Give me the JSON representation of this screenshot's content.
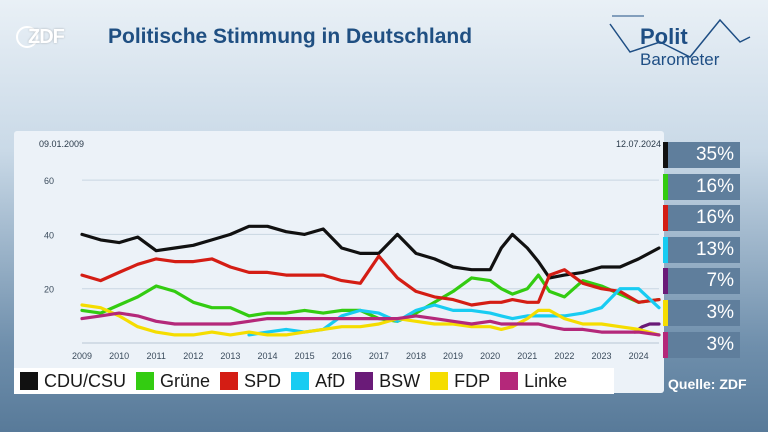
{
  "header": {
    "title": "Politische Stimmung in Deutschland",
    "zdf_logo_text": "ZDF",
    "politbarometer_line1": "Polit",
    "politbarometer_line2": "Barometer"
  },
  "source": "Quelle: ZDF",
  "colors": {
    "CDU/CSU": "#111111",
    "Grüne": "#33cc11",
    "SPD": "#d41d14",
    "AfD": "#18ccf2",
    "BSW": "#6a1b78",
    "FDP": "#f5dd00",
    "Linke": "#b4287a"
  },
  "current_results": [
    {
      "party": "CDU/CSU",
      "value": "35%"
    },
    {
      "party": "Grüne",
      "value": "16%"
    },
    {
      "party": "SPD",
      "value": "16%"
    },
    {
      "party": "AfD",
      "value": "13%"
    },
    {
      "party": "BSW",
      "value": "7%"
    },
    {
      "party": "FDP",
      "value": "3%"
    },
    {
      "party": "Linke",
      "value": "3%"
    }
  ],
  "chart_data": {
    "type": "line",
    "title": "Politische Stimmung in Deutschland",
    "start_date": "09.01.2009",
    "end_date": "12.07.2024",
    "xlabel": "",
    "ylabel": "",
    "xlim": [
      2009.0,
      2024.55
    ],
    "ylim": [
      0,
      70
    ],
    "yticks": [
      20,
      40,
      60
    ],
    "xticks": [
      "2009",
      "2010",
      "2011",
      "2012",
      "2013",
      "2014",
      "2015",
      "2016",
      "2017",
      "2018",
      "2019",
      "2020",
      "2021",
      "2022",
      "2023",
      "2024"
    ],
    "grid": true,
    "legend_position": "bottom",
    "series": [
      {
        "name": "CDU/CSU",
        "x": [
          2009.0,
          2009.5,
          2010.0,
          2010.5,
          2011.0,
          2011.5,
          2012.0,
          2012.5,
          2013.0,
          2013.5,
          2014.0,
          2014.5,
          2015.0,
          2015.5,
          2016.0,
          2016.5,
          2017.0,
          2017.5,
          2018.0,
          2018.5,
          2019.0,
          2019.5,
          2020.0,
          2020.3,
          2020.6,
          2021.0,
          2021.3,
          2021.6,
          2022.0,
          2022.5,
          2023.0,
          2023.5,
          2024.0,
          2024.55
        ],
        "values": [
          40,
          38,
          37,
          39,
          34,
          35,
          36,
          38,
          40,
          43,
          43,
          41,
          40,
          42,
          35,
          33,
          33,
          40,
          33,
          31,
          28,
          27,
          27,
          35,
          40,
          35,
          30,
          24,
          25,
          26,
          28,
          28,
          31,
          35
        ]
      },
      {
        "name": "Grüne",
        "x": [
          2009.0,
          2009.5,
          2010.0,
          2010.5,
          2011.0,
          2011.5,
          2012.0,
          2012.5,
          2013.0,
          2013.5,
          2014.0,
          2014.5,
          2015.0,
          2015.5,
          2016.0,
          2016.5,
          2017.0,
          2017.5,
          2018.0,
          2018.5,
          2019.0,
          2019.5,
          2020.0,
          2020.3,
          2020.6,
          2021.0,
          2021.3,
          2021.6,
          2022.0,
          2022.5,
          2023.0,
          2023.5,
          2024.0,
          2024.55
        ],
        "values": [
          12,
          11,
          14,
          17,
          21,
          19,
          15,
          13,
          13,
          10,
          11,
          11,
          12,
          11,
          12,
          12,
          9,
          8,
          11,
          15,
          19,
          24,
          23,
          20,
          18,
          20,
          25,
          19,
          17,
          23,
          21,
          18,
          15,
          16
        ]
      },
      {
        "name": "SPD",
        "x": [
          2009.0,
          2009.5,
          2010.0,
          2010.5,
          2011.0,
          2011.5,
          2012.0,
          2012.5,
          2013.0,
          2013.5,
          2014.0,
          2014.5,
          2015.0,
          2015.5,
          2016.0,
          2016.5,
          2017.0,
          2017.5,
          2018.0,
          2018.5,
          2019.0,
          2019.5,
          2020.0,
          2020.3,
          2020.6,
          2021.0,
          2021.3,
          2021.6,
          2022.0,
          2022.5,
          2023.0,
          2023.5,
          2024.0,
          2024.55
        ],
        "values": [
          25,
          23,
          26,
          29,
          31,
          30,
          30,
          31,
          28,
          26,
          26,
          25,
          25,
          25,
          23,
          22,
          32,
          24,
          19,
          17,
          16,
          14,
          15,
          15,
          16,
          15,
          15,
          25,
          27,
          22,
          20,
          19,
          15,
          16
        ]
      },
      {
        "name": "AfD",
        "x": [
          2013.5,
          2014.0,
          2014.5,
          2015.0,
          2015.5,
          2016.0,
          2016.5,
          2017.0,
          2017.5,
          2018.0,
          2018.5,
          2019.0,
          2019.5,
          2020.0,
          2020.3,
          2020.6,
          2021.0,
          2021.3,
          2021.6,
          2022.0,
          2022.5,
          2023.0,
          2023.5,
          2024.0,
          2024.55
        ],
        "values": [
          3,
          4,
          5,
          4,
          5,
          10,
          12,
          11,
          8,
          12,
          14,
          12,
          12,
          11,
          10,
          9,
          10,
          10,
          10,
          10,
          11,
          13,
          20,
          20,
          13
        ]
      },
      {
        "name": "BSW",
        "x": [
          2023.9,
          2024.1,
          2024.3,
          2024.55
        ],
        "values": [
          4,
          6,
          7,
          7
        ]
      },
      {
        "name": "FDP",
        "x": [
          2009.0,
          2009.5,
          2010.0,
          2010.5,
          2011.0,
          2011.5,
          2012.0,
          2012.5,
          2013.0,
          2013.5,
          2014.0,
          2014.5,
          2015.0,
          2015.5,
          2016.0,
          2016.5,
          2017.0,
          2017.5,
          2018.0,
          2018.5,
          2019.0,
          2019.5,
          2020.0,
          2020.3,
          2020.6,
          2021.0,
          2021.3,
          2021.6,
          2022.0,
          2022.5,
          2023.0,
          2023.5,
          2024.0,
          2024.55
        ],
        "values": [
          14,
          13,
          10,
          6,
          4,
          3,
          3,
          4,
          3,
          4,
          3,
          3,
          4,
          5,
          6,
          6,
          7,
          9,
          8,
          7,
          7,
          6,
          6,
          5,
          6,
          9,
          12,
          12,
          9,
          7,
          7,
          6,
          5,
          3
        ]
      },
      {
        "name": "Linke",
        "x": [
          2009.0,
          2009.5,
          2010.0,
          2010.5,
          2011.0,
          2011.5,
          2012.0,
          2012.5,
          2013.0,
          2013.5,
          2014.0,
          2014.5,
          2015.0,
          2015.5,
          2016.0,
          2016.5,
          2017.0,
          2017.5,
          2018.0,
          2018.5,
          2019.0,
          2019.5,
          2020.0,
          2020.3,
          2020.6,
          2021.0,
          2021.3,
          2021.6,
          2022.0,
          2022.5,
          2023.0,
          2023.5,
          2024.0,
          2024.55
        ],
        "values": [
          9,
          10,
          11,
          10,
          8,
          7,
          7,
          7,
          7,
          8,
          9,
          9,
          9,
          9,
          9,
          9,
          9,
          9,
          10,
          9,
          8,
          7,
          8,
          7,
          7,
          7,
          7,
          6,
          5,
          5,
          4,
          4,
          4,
          3
        ]
      }
    ]
  }
}
